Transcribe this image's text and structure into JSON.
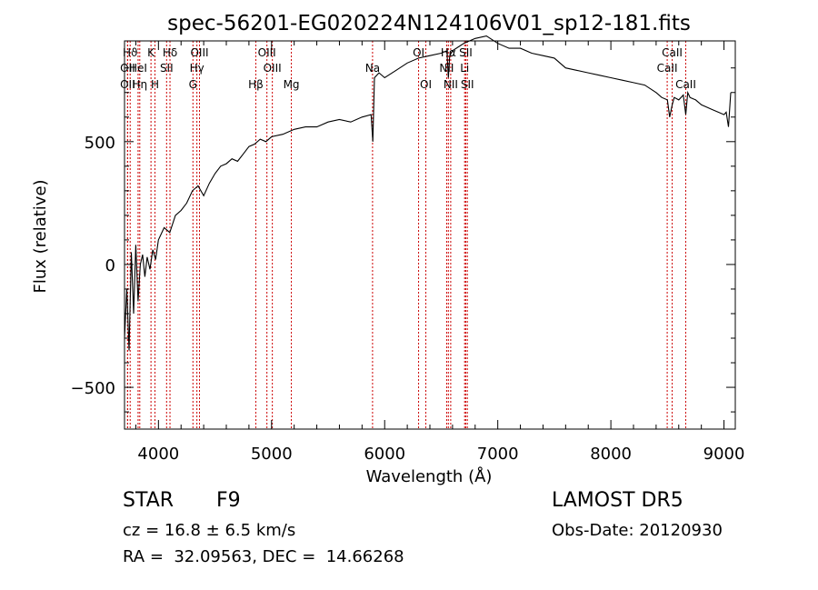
{
  "chart_data": {
    "type": "line",
    "title": "spec-56201-EG020224N124106V01_sp12-181.fits",
    "xlabel": "Wavelength (Å)",
    "ylabel": "Flux (relative)",
    "xlim": [
      3700,
      9100
    ],
    "ylim": [
      -670,
      910
    ],
    "xticks": [
      4000,
      5000,
      6000,
      7000,
      8000,
      9000
    ],
    "yticks": [
      -500,
      0,
      500
    ],
    "grid": false,
    "line_color": "#000000",
    "marker_color": "#cc0000",
    "series": [
      {
        "x": [
          3700,
          3720,
          3740,
          3760,
          3780,
          3800,
          3820,
          3840,
          3860,
          3880,
          3900,
          3925,
          3950,
          3975,
          4000,
          4050,
          4100,
          4150,
          4200,
          4250,
          4300,
          4350,
          4400,
          4450,
          4500,
          4550,
          4600,
          4650,
          4700,
          4750,
          4800,
          4850,
          4900,
          4950,
          5000,
          5100,
          5200,
          5300,
          5400,
          5500,
          5600,
          5700,
          5800,
          5880,
          5895,
          5910,
          5950,
          6000,
          6100,
          6200,
          6300,
          6400,
          6500,
          6550,
          6563,
          6575,
          6600,
          6700,
          6800,
          6900,
          7000,
          7100,
          7200,
          7300,
          7400,
          7500,
          7600,
          7700,
          7800,
          7900,
          8000,
          8100,
          8200,
          8300,
          8400,
          8450,
          8500,
          8520,
          8542,
          8560,
          8600,
          8640,
          8662,
          8680,
          8700,
          8750,
          8800,
          8850,
          8900,
          8950,
          9000,
          9020,
          9040,
          9060
        ],
        "y": [
          -300,
          -100,
          -350,
          50,
          -200,
          80,
          -150,
          0,
          40,
          -50,
          30,
          -20,
          60,
          20,
          100,
          150,
          130,
          200,
          220,
          250,
          300,
          320,
          280,
          330,
          370,
          400,
          410,
          430,
          420,
          450,
          480,
          490,
          510,
          500,
          520,
          530,
          550,
          560,
          560,
          580,
          590,
          580,
          600,
          610,
          500,
          760,
          780,
          760,
          790,
          820,
          840,
          850,
          860,
          870,
          760,
          850,
          870,
          900,
          920,
          930,
          900,
          880,
          880,
          860,
          850,
          840,
          800,
          790,
          780,
          770,
          760,
          750,
          740,
          730,
          700,
          680,
          670,
          600,
          650,
          680,
          670,
          690,
          610,
          700,
          680,
          670,
          650,
          640,
          630,
          620,
          610,
          620,
          560,
          700
        ]
      }
    ],
    "lines": [
      {
        "label": "Hϑ",
        "x": 3750,
        "row": 1
      },
      {
        "label": "OII",
        "x": 3727,
        "row": 2
      },
      {
        "label": "OII",
        "x": 3727,
        "row": 3
      },
      {
        "label": "Hη",
        "x": 3835,
        "row": 3
      },
      {
        "label": "HeI",
        "x": 3820,
        "row": 2
      },
      {
        "label": "K",
        "x": 3934,
        "row": 1
      },
      {
        "label": "H",
        "x": 3969,
        "row": 3
      },
      {
        "label": "SII",
        "x": 4072,
        "row": 2
      },
      {
        "label": "Hδ",
        "x": 4102,
        "row": 1
      },
      {
        "label": "OIII",
        "x": 4363,
        "row": 1
      },
      {
        "label": "Hγ",
        "x": 4340,
        "row": 2
      },
      {
        "label": "G",
        "x": 4305,
        "row": 3
      },
      {
        "label": "Hβ",
        "x": 4861,
        "row": 3
      },
      {
        "label": "OIII",
        "x": 4959,
        "row": 1
      },
      {
        "label": "OIII",
        "x": 5007,
        "row": 2
      },
      {
        "label": "Mg",
        "x": 5175,
        "row": 3
      },
      {
        "label": "Na",
        "x": 5893,
        "row": 2
      },
      {
        "label": "OI",
        "x": 6300,
        "row": 1
      },
      {
        "label": "OI",
        "x": 6364,
        "row": 3
      },
      {
        "label": "Hα",
        "x": 6563,
        "row": 1
      },
      {
        "label": "NII",
        "x": 6548,
        "row": 2
      },
      {
        "label": "NII",
        "x": 6584,
        "row": 3
      },
      {
        "label": "SII",
        "x": 6717,
        "row": 1
      },
      {
        "label": "Li",
        "x": 6707,
        "row": 2
      },
      {
        "label": "SII",
        "x": 6731,
        "row": 3
      },
      {
        "label": "CaII",
        "x": 8542,
        "row": 1
      },
      {
        "label": "CaII",
        "x": 8498,
        "row": 2
      },
      {
        "label": "CaII",
        "x": 8662,
        "row": 3
      }
    ]
  },
  "info": {
    "class_label": "STAR",
    "subclass": "F9",
    "survey": "LAMOST DR5",
    "redshift": "cz = 16.8 ± 6.5 km/s",
    "obs_date": "Obs-Date: 20120930",
    "coords": "RA =  32.09563, DEC =  14.66268"
  }
}
